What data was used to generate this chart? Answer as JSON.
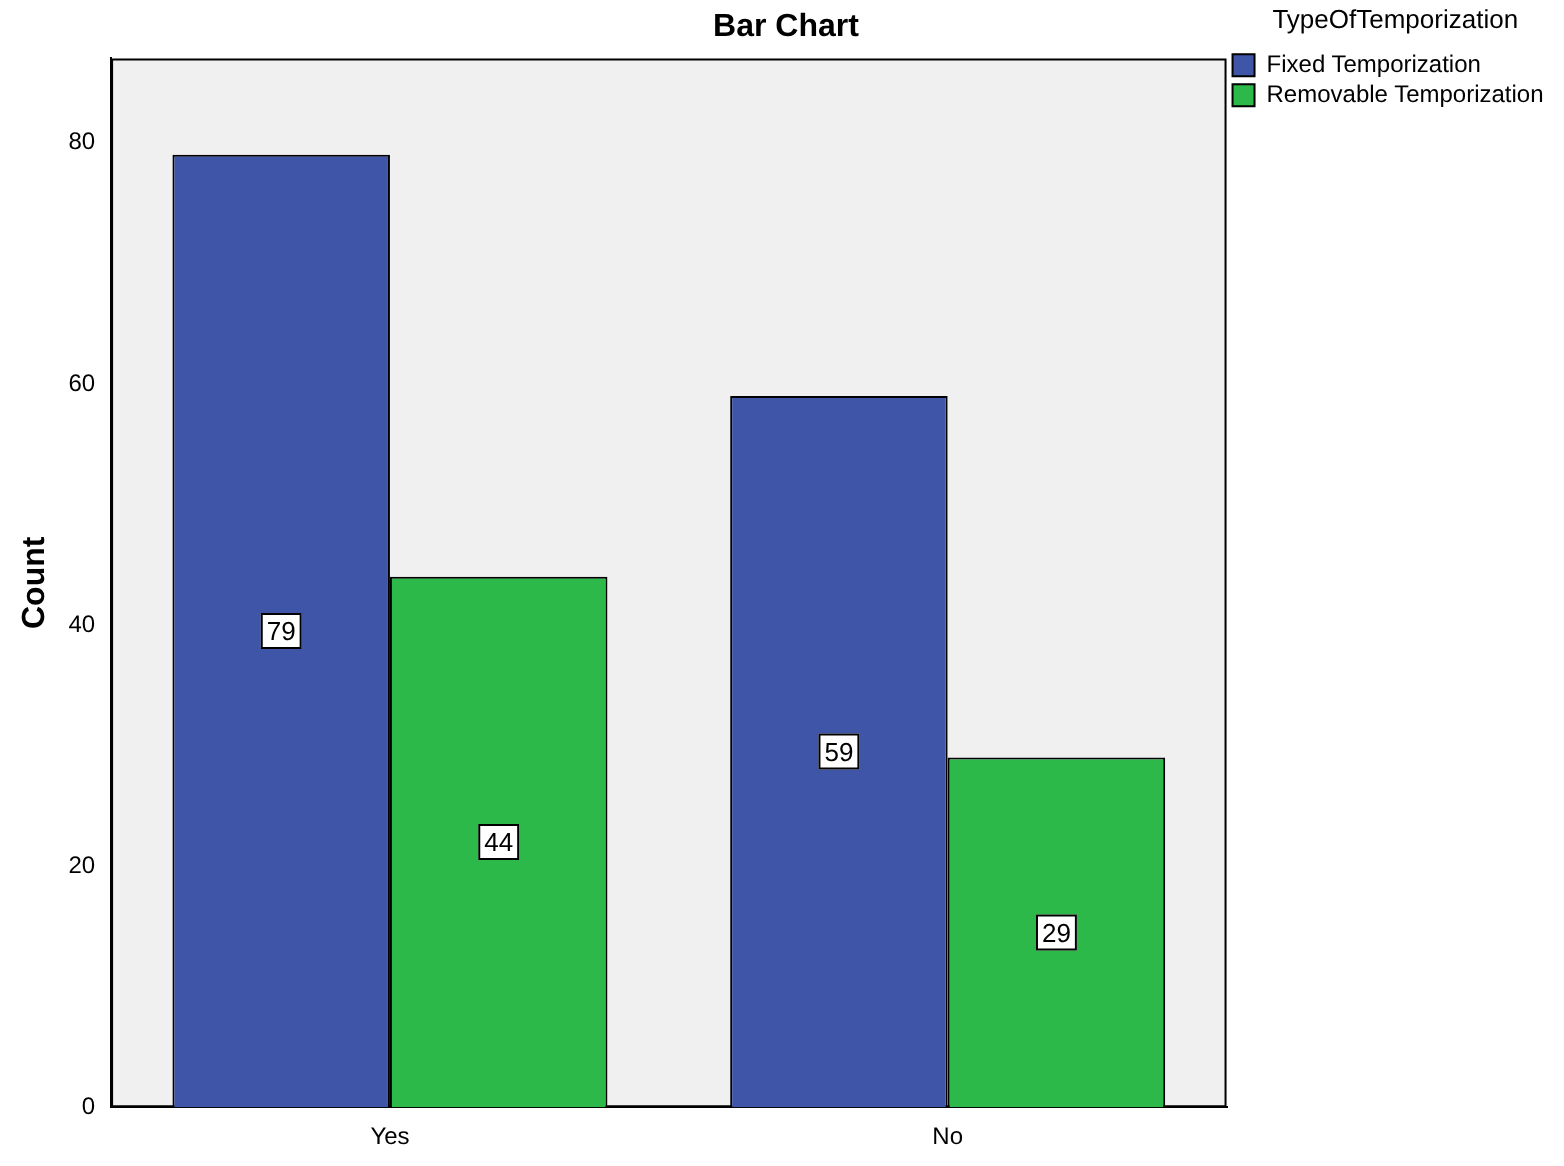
{
  "chart_data": {
    "type": "bar",
    "title": "Bar Chart",
    "ylabel": "Count",
    "legend_title": "TypeOfTemporization",
    "categories": [
      "Yes",
      "No"
    ],
    "series": [
      {
        "name": "Fixed Temporization",
        "color": "#3f56a8",
        "values": [
          79,
          59
        ]
      },
      {
        "name": "Removable Temporization",
        "color": "#2db84a",
        "values": [
          44,
          29
        ]
      }
    ],
    "ylim": [
      0,
      87
    ],
    "yticks": [
      0,
      20,
      40,
      60,
      80
    ],
    "grid": false,
    "legend": "top right",
    "data_labels": true
  }
}
